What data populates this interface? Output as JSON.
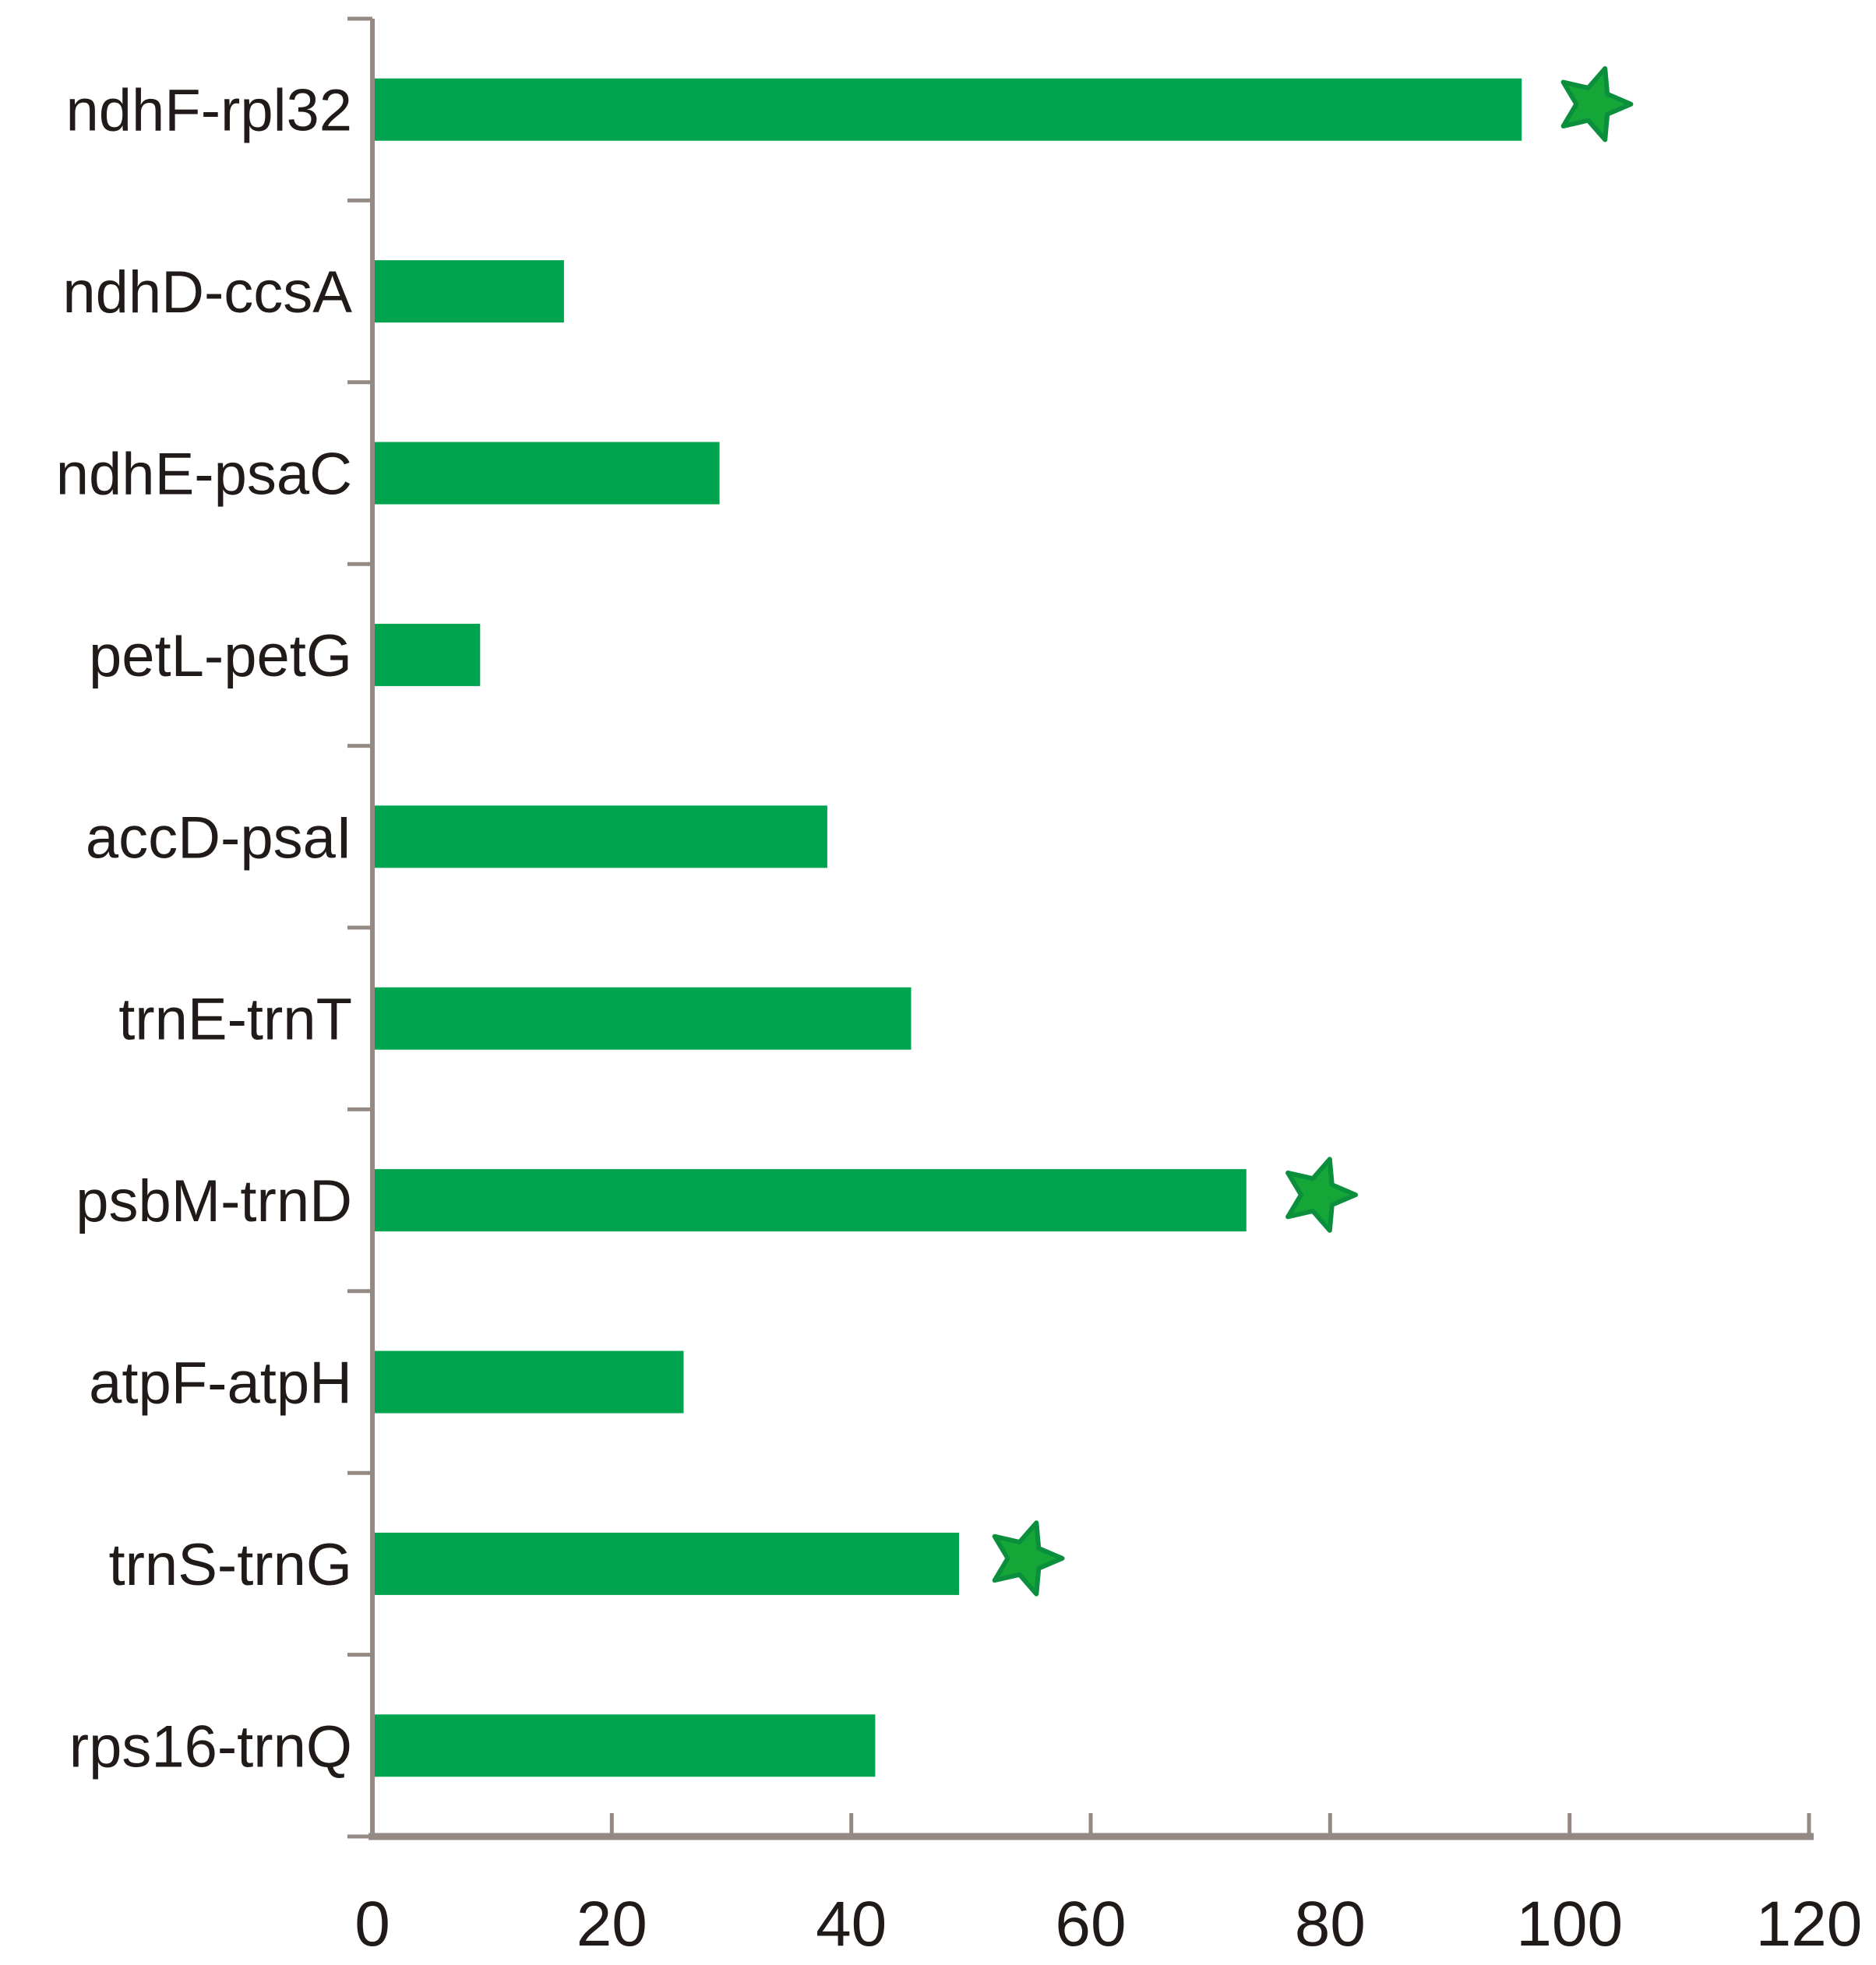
{
  "chart_data": {
    "type": "bar",
    "orientation": "horizontal",
    "title": "",
    "xlabel": "",
    "ylabel": "",
    "grid": false,
    "legend": "none",
    "categories": [
      "ndhF-rpl32",
      "ndhD-ccsA",
      "ndhE-psaC",
      "petL-petG",
      "accD-psaI",
      "trnE-trnT",
      "psbM-trnD",
      "atpF-atpH",
      "trnS-trnG",
      "rps16-trnQ"
    ],
    "values": [
      96,
      16,
      29,
      9,
      38,
      45,
      73,
      26,
      49,
      42
    ],
    "xlim": [
      0,
      120
    ],
    "x_ticks": [
      0,
      20,
      40,
      60,
      80,
      100,
      120
    ],
    "x_tick_labels": [
      "0",
      "20",
      "40",
      "60",
      "80",
      "100",
      "120"
    ],
    "stars": [
      {
        "category": "ndhF-rpl32",
        "x": 102
      },
      {
        "category": "psbM-trnD",
        "x": 79
      },
      {
        "category": "trnS-trnG",
        "x": 54.5
      }
    ],
    "colors": {
      "bar": "#00A44F",
      "star_fill": "#14A738",
      "star_stroke": "#0C8F3C",
      "axis": "#958984",
      "text": "#201B18",
      "background": "#FFFFFF"
    }
  }
}
